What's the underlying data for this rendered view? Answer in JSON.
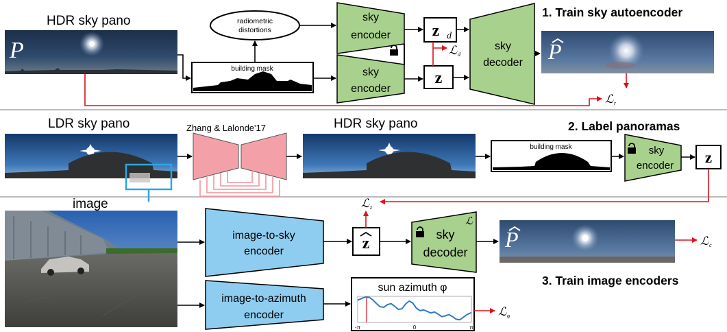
{
  "stages": {
    "train_sky_autoencoder": "1. Train sky autoencoder",
    "label_panoramas": "2. Label panoramas",
    "train_image_encoders": "3. Train image encoders"
  },
  "images": {
    "hdr_sky_pano": "HDR sky pano",
    "ldr_sky_pano": "LDR sky pano",
    "hdr_sky_pano_2": "HDR sky pano",
    "image": "image",
    "pano_symbol": "P",
    "pano_hat_symbol": "P"
  },
  "blocks": {
    "radiometric_line1": "radiometric",
    "radiometric_line2": "distortions",
    "building_mask": "building mask",
    "building_mask_2": "building mask",
    "sky_encoder_top_l1": "sky",
    "sky_encoder_top_l2": "encoder",
    "sky_encoder_bottom_l1": "sky",
    "sky_encoder_bottom_l2": "encoder",
    "sky_decoder_l1": "sky",
    "sky_decoder_l2": "decoder",
    "zhang_lalonde": "Zhang & Lalonde'17",
    "sky_encoder_s2_l1": "sky",
    "sky_encoder_s2_l2": "encoder",
    "image_to_sky_l1": "image-to-sky",
    "image_to_sky_l2": "encoder",
    "sky_decoder_s3_l1": "sky",
    "sky_decoder_s3_l2": "decoder",
    "image_to_azimuth_l1": "image-to-azimuth",
    "image_to_azimuth_l2": "encoder"
  },
  "latents": {
    "zd": "z",
    "zd_sub": "d",
    "z": "z",
    "z_s2": "z",
    "z_hat": "z"
  },
  "losses": {
    "l_d": "ℒ",
    "l_d_sub": "d",
    "l_r": "ℒ",
    "l_r_sub": "r",
    "l_z": "ℒ",
    "l_z_sub": "z",
    "l_c": "ℒ",
    "l_c_sub": "c",
    "l_phi": "ℒ",
    "l_phi_sub": "φ",
    "l_decoder_corner": "ℒ"
  },
  "azimuth_plot": {
    "title": "sun azimuth φ",
    "tick_left": "-π",
    "tick_mid": "0",
    "tick_right": "π"
  },
  "colors": {
    "encoder_green": "#a9d18e",
    "image_encoder_blue": "#8fcdf0",
    "zhang_pink": "#f4a0a8",
    "loss_red": "#e0101a",
    "highlight_cyan": "#29a8e0",
    "curve_blue": "#2b7bc8"
  },
  "chart_data": {
    "type": "line",
    "title": "sun azimuth φ",
    "xlabel": "",
    "ylabel": "",
    "x_tick_labels": [
      "-π",
      "0",
      "π"
    ],
    "xlim": [
      -3.14159,
      3.14159
    ],
    "ylim": [
      0,
      1
    ],
    "grid": false,
    "peak_marker_x": -2.65,
    "series": [
      {
        "x": [
          -3.14,
          -2.9,
          -2.7,
          -2.5,
          -2.3,
          -2.1,
          -1.9,
          -1.7,
          -1.5,
          -1.3,
          -1.1,
          -0.9,
          -0.7,
          -0.5,
          -0.3,
          -0.1,
          0.1,
          0.3,
          0.5,
          0.7,
          0.9,
          1.1,
          1.3,
          1.5,
          1.7,
          1.9,
          2.1,
          2.3,
          2.5,
          2.7,
          2.9,
          3.14
        ],
        "y": [
          0.85,
          0.93,
          0.97,
          0.96,
          0.86,
          0.72,
          0.6,
          0.58,
          0.68,
          0.72,
          0.62,
          0.5,
          0.52,
          0.7,
          0.82,
          0.74,
          0.55,
          0.45,
          0.48,
          0.42,
          0.36,
          0.4,
          0.32,
          0.22,
          0.25,
          0.3,
          0.22,
          0.12,
          0.1,
          0.2,
          0.3,
          0.38
        ]
      }
    ]
  }
}
